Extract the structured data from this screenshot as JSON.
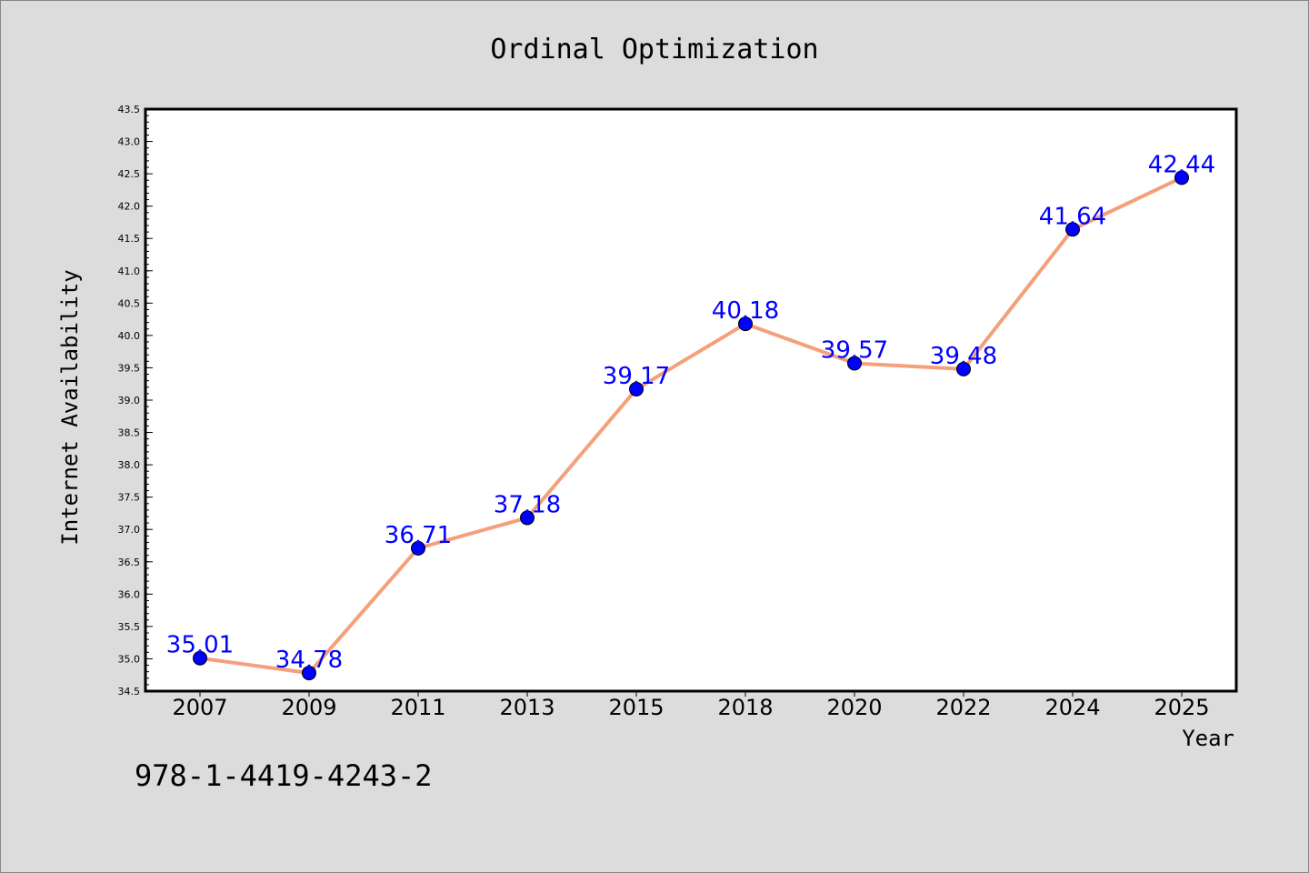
{
  "chart_data": {
    "type": "line",
    "title": "Ordinal Optimization",
    "xlabel": "Year",
    "ylabel": "Internet Availability",
    "categories": [
      "2007",
      "2009",
      "2011",
      "2013",
      "2015",
      "2018",
      "2020",
      "2022",
      "2024",
      "2025"
    ],
    "series": [
      {
        "values": [
          35.01,
          34.78,
          36.71,
          37.18,
          39.17,
          40.18,
          39.57,
          39.48,
          41.64,
          42.44
        ],
        "labels": [
          "35.01",
          "34.78",
          "36.71",
          "37.18",
          "39.17",
          "40.18",
          "39.57",
          "39.48",
          "41.64",
          "42.44"
        ]
      }
    ],
    "ylim": [
      34.5,
      43.5
    ],
    "yticks": [
      34.5,
      35.0,
      35.5,
      36.0,
      36.5,
      37.0,
      37.5,
      38.0,
      38.5,
      39.0,
      39.5,
      40.0,
      40.5,
      41.0,
      41.5,
      42.0,
      42.5,
      43.0,
      43.5
    ],
    "ytick_labels": [
      "34.5",
      "35.0",
      "35.5",
      "36.0",
      "36.5",
      "37.0",
      "37.5",
      "38.0",
      "38.5",
      "39.0",
      "39.5",
      "40.0",
      "40.5",
      "41.0",
      "41.5",
      "42.0",
      "42.5",
      "43.0",
      "43.5"
    ],
    "grid": false,
    "legend": "none",
    "colors": {
      "line": "#f4a07a",
      "marker": "#0000ff",
      "data_label": "#0000ff",
      "background": "#dcdcdc",
      "plot_background": "#ffffff"
    }
  },
  "footer": {
    "isbn": "978-1-4419-4243-2"
  }
}
